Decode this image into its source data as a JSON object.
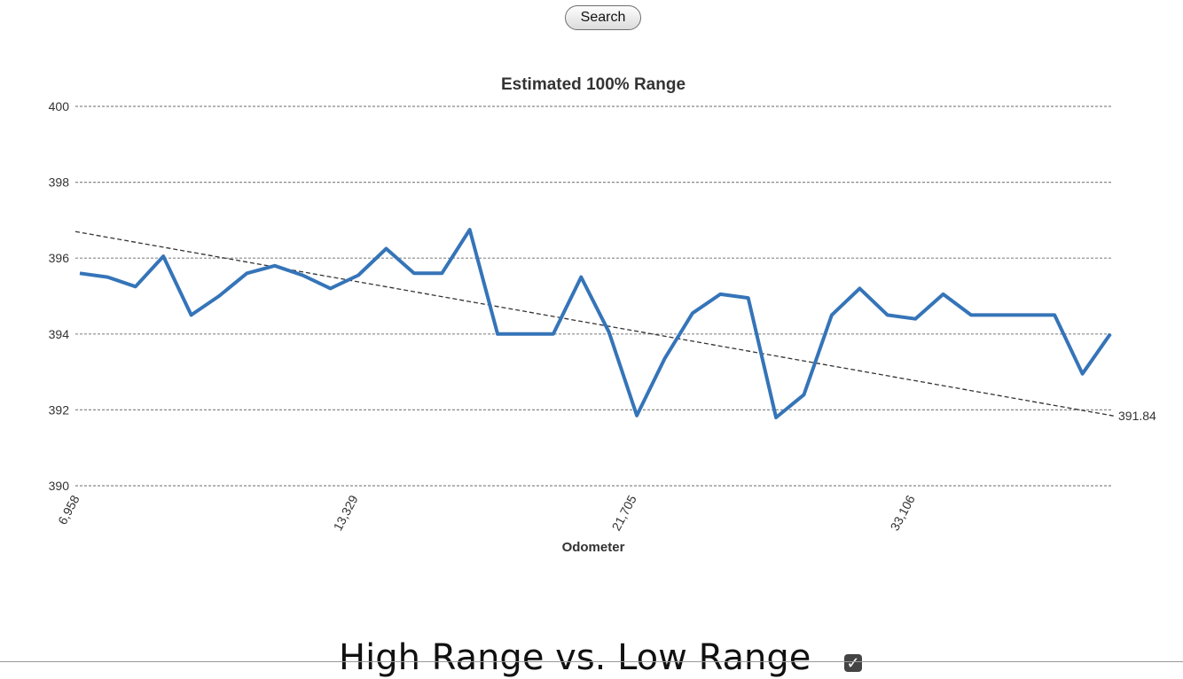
{
  "search_button": {
    "label": "Search"
  },
  "chart_data": {
    "type": "line",
    "title": "Estimated 100% Range",
    "xlabel": "Odometer",
    "ylabel": "",
    "ylim": [
      390,
      400
    ],
    "y_ticks": [
      390,
      392,
      394,
      396,
      398,
      400
    ],
    "y_tick_labels": [
      "390",
      "392",
      "394",
      "396",
      "398",
      "400"
    ],
    "x_tick_labels": [
      "6,958",
      "13,329",
      "21,705",
      "33,106"
    ],
    "x_tick_indices": [
      0,
      10,
      20,
      30
    ],
    "grid": true,
    "colors": {
      "series": "#3574b8",
      "trend": "#333333",
      "grid": "#888888"
    },
    "series": [
      {
        "values": [
          395.6,
          395.5,
          395.25,
          396.05,
          394.5,
          395.0,
          395.6,
          395.8,
          395.55,
          395.2,
          395.55,
          396.25,
          395.6,
          395.6,
          396.75,
          394.0,
          394.0,
          394.0,
          395.5,
          394.05,
          391.85,
          393.35,
          394.55,
          395.05,
          394.95,
          391.8,
          392.4,
          394.5,
          395.2,
          394.5,
          394.4,
          395.05,
          394.5,
          394.5,
          394.5,
          394.5,
          392.95,
          394.0
        ]
      }
    ],
    "trendline": {
      "style": "dashed",
      "start": 396.7,
      "end": 391.84,
      "end_label": "391.84"
    }
  },
  "section": {
    "heading": "High Range vs. Low Range",
    "checkbox_checked": true
  }
}
